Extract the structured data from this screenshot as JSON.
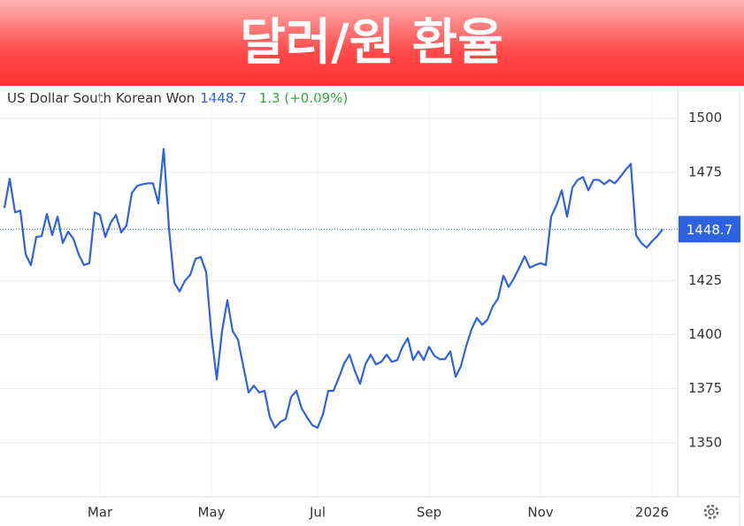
{
  "chart_data": {
    "type": "line",
    "title": "달러/원 환율",
    "header": {
      "name": "US Dollar South Korean Won",
      "price": "1448.7",
      "change": "1.3 (+0.09%)"
    },
    "categories": [
      null,
      null,
      null,
      null,
      null,
      null,
      null,
      null,
      null,
      null,
      null,
      null,
      null,
      null,
      null,
      null,
      null,
      null,
      "Mar",
      null,
      null,
      null,
      null,
      null,
      null,
      null,
      null,
      null,
      null,
      null,
      null,
      null,
      null,
      null,
      null,
      null,
      null,
      null,
      null,
      "May",
      null,
      null,
      null,
      null,
      null,
      null,
      null,
      null,
      null,
      null,
      null,
      null,
      null,
      null,
      null,
      null,
      null,
      null,
      null,
      "Jul",
      null,
      null,
      null,
      null,
      null,
      null,
      null,
      null,
      null,
      null,
      null,
      null,
      null,
      null,
      null,
      null,
      null,
      null,
      null,
      null,
      "Sep",
      null,
      null,
      null,
      null,
      null,
      null,
      null,
      null,
      null,
      null,
      null,
      null,
      null,
      null,
      null,
      null,
      null,
      null,
      null,
      null,
      "Nov",
      null,
      null,
      null,
      null,
      null,
      null,
      null,
      null,
      null,
      null,
      null,
      null,
      null,
      null,
      null,
      null,
      null,
      null,
      null,
      null,
      "2026",
      null,
      null
    ],
    "series": [
      {
        "name": "US Dollar South Korean Won",
        "color": "#2f62e0",
        "values": [
          1458.5,
          1472,
          1456.5,
          1457.3,
          1437,
          1432.1,
          1445.1,
          1445.5,
          1455.7,
          1446,
          1454.5,
          1442.3,
          1447.6,
          1444.3,
          1437,
          1432.1,
          1433,
          1456.5,
          1455.3,
          1445.1,
          1451.6,
          1455.3,
          1447.2,
          1450.4,
          1465.4,
          1468.7,
          1469.5,
          1469.9,
          1469.9,
          1460.6,
          1485.8,
          1449.2,
          1424,
          1419.9,
          1424.8,
          1427.6,
          1435,
          1435.8,
          1428.9,
          1400,
          1379.3,
          1401.6,
          1415.9,
          1401.6,
          1397.6,
          1385.4,
          1373.2,
          1376.4,
          1373.2,
          1374,
          1361.8,
          1356.9,
          1359.7,
          1361,
          1371.1,
          1374,
          1365.9,
          1361.8,
          1358.1,
          1356.9,
          1363,
          1374,
          1374,
          1380.1,
          1386.6,
          1390.7,
          1383.3,
          1377.2,
          1386.2,
          1390.7,
          1386.2,
          1387.4,
          1390.7,
          1387.4,
          1388.2,
          1394.3,
          1398.4,
          1388.2,
          1392.3,
          1388.2,
          1394.3,
          1390.2,
          1388.6,
          1388.6,
          1392.3,
          1380.5,
          1385.4,
          1394.7,
          1402.4,
          1407.7,
          1404.5,
          1406.9,
          1413,
          1416.7,
          1427.2,
          1422,
          1426,
          1430.9,
          1436.2,
          1430.9,
          1432.1,
          1433,
          1432.1,
          1454.5,
          1459.8,
          1466.7,
          1454.5,
          1467.9,
          1471.5,
          1472.8,
          1466.7,
          1471.5,
          1471.5,
          1469.5,
          1471.5,
          1469.9,
          1472.8,
          1476,
          1478.9,
          1445.9,
          1442.3,
          1440.2,
          1443.1,
          1445.5,
          1448.7
        ]
      }
    ],
    "ylim": [
      1325,
      1515
    ],
    "yticks": [
      1350,
      1375,
      1400,
      1425,
      1475,
      1500
    ],
    "grid": true,
    "header_colors": {
      "name": "#333333",
      "price": "#2f62e0",
      "change": "#2eaa3c"
    }
  }
}
